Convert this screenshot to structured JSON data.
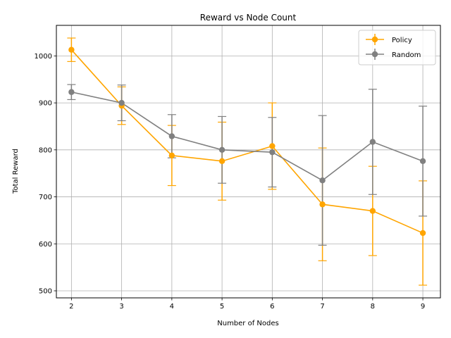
{
  "chart_data": {
    "type": "line",
    "title": "Reward vs Node Count",
    "xlabel": "Number of Nodes",
    "ylabel": "Total Reward",
    "x": [
      2,
      3,
      4,
      5,
      6,
      7,
      8,
      9
    ],
    "xlim": [
      1.7,
      9.35
    ],
    "ylim": [
      485,
      1065
    ],
    "yticks": [
      500,
      600,
      700,
      800,
      900,
      1000
    ],
    "grid": true,
    "legend_position": "top-right",
    "series": [
      {
        "name": "Policy",
        "color": "#FFA500",
        "values": [
          1013,
          894,
          788,
          776,
          808,
          684,
          670,
          623
        ],
        "error": [
          25,
          40,
          64,
          83,
          92,
          120,
          95,
          111
        ]
      },
      {
        "name": "Random",
        "color": "#808080",
        "values": [
          923,
          900,
          829,
          800,
          795,
          735,
          817,
          776
        ],
        "error": [
          16,
          38,
          46,
          71,
          74,
          138,
          112,
          117
        ]
      }
    ]
  }
}
